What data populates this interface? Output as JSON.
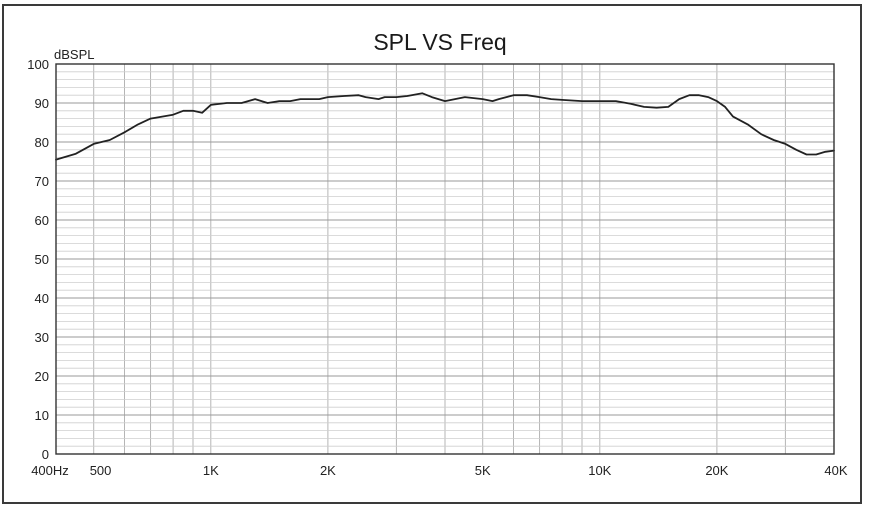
{
  "chart_data": {
    "type": "line",
    "title": "SPL VS Freq",
    "ylabel": "dBSPL",
    "xlabel": "",
    "x_scale": "log",
    "xlim": [
      400,
      40000
    ],
    "ylim": [
      0,
      100
    ],
    "grid": true,
    "y_ticks": [
      {
        "value": 0,
        "label": "0"
      },
      {
        "value": 10,
        "label": "10"
      },
      {
        "value": 20,
        "label": "20"
      },
      {
        "value": 30,
        "label": "30"
      },
      {
        "value": 40,
        "label": "40"
      },
      {
        "value": 50,
        "label": "50"
      },
      {
        "value": 60,
        "label": "60"
      },
      {
        "value": 70,
        "label": "70"
      },
      {
        "value": 80,
        "label": "80"
      },
      {
        "value": 90,
        "label": "90"
      },
      {
        "value": 100,
        "label": "100"
      }
    ],
    "x_ticks": [
      {
        "value": 400,
        "label": "400Hz"
      },
      {
        "value": 500,
        "label": "500"
      },
      {
        "value": 1000,
        "label": "1K"
      },
      {
        "value": 2000,
        "label": "2K"
      },
      {
        "value": 5000,
        "label": "5K"
      },
      {
        "value": 10000,
        "label": "10K"
      },
      {
        "value": 20000,
        "label": "20K"
      },
      {
        "value": 40000,
        "label": "40K"
      }
    ],
    "series": [
      {
        "color": "#222222",
        "points": [
          [
            400,
            75.5
          ],
          [
            450,
            77
          ],
          [
            500,
            79.5
          ],
          [
            550,
            80.5
          ],
          [
            600,
            82.5
          ],
          [
            650,
            84.5
          ],
          [
            700,
            86
          ],
          [
            800,
            87
          ],
          [
            850,
            88
          ],
          [
            900,
            88
          ],
          [
            950,
            87.5
          ],
          [
            1000,
            89.5
          ],
          [
            1100,
            90
          ],
          [
            1200,
            90
          ],
          [
            1300,
            91
          ],
          [
            1400,
            90
          ],
          [
            1500,
            90.5
          ],
          [
            1600,
            90.5
          ],
          [
            1700,
            91
          ],
          [
            1800,
            91
          ],
          [
            1900,
            91
          ],
          [
            2000,
            91.5
          ],
          [
            2200,
            91.8
          ],
          [
            2400,
            92
          ],
          [
            2500,
            91.5
          ],
          [
            2700,
            91
          ],
          [
            2800,
            91.5
          ],
          [
            3000,
            91.5
          ],
          [
            3200,
            91.8
          ],
          [
            3500,
            92.5
          ],
          [
            3700,
            91.5
          ],
          [
            4000,
            90.5
          ],
          [
            4500,
            91.5
          ],
          [
            5000,
            91
          ],
          [
            5300,
            90.5
          ],
          [
            5500,
            91
          ],
          [
            6000,
            92
          ],
          [
            6500,
            92
          ],
          [
            7000,
            91.5
          ],
          [
            7500,
            91
          ],
          [
            8000,
            90.8
          ],
          [
            9000,
            90.5
          ],
          [
            10000,
            90.5
          ],
          [
            11000,
            90.5
          ],
          [
            12000,
            89.8
          ],
          [
            13000,
            89
          ],
          [
            14000,
            88.8
          ],
          [
            15000,
            89
          ],
          [
            16000,
            91
          ],
          [
            17000,
            92
          ],
          [
            18000,
            92
          ],
          [
            19000,
            91.5
          ],
          [
            20000,
            90.5
          ],
          [
            21000,
            89
          ],
          [
            22000,
            86.5
          ],
          [
            24000,
            84.5
          ],
          [
            26000,
            82
          ],
          [
            28000,
            80.5
          ],
          [
            30000,
            79.5
          ],
          [
            32000,
            78
          ],
          [
            34000,
            76.8
          ],
          [
            36000,
            76.8
          ],
          [
            38000,
            77.5
          ],
          [
            40000,
            77.8
          ]
        ]
      }
    ]
  }
}
